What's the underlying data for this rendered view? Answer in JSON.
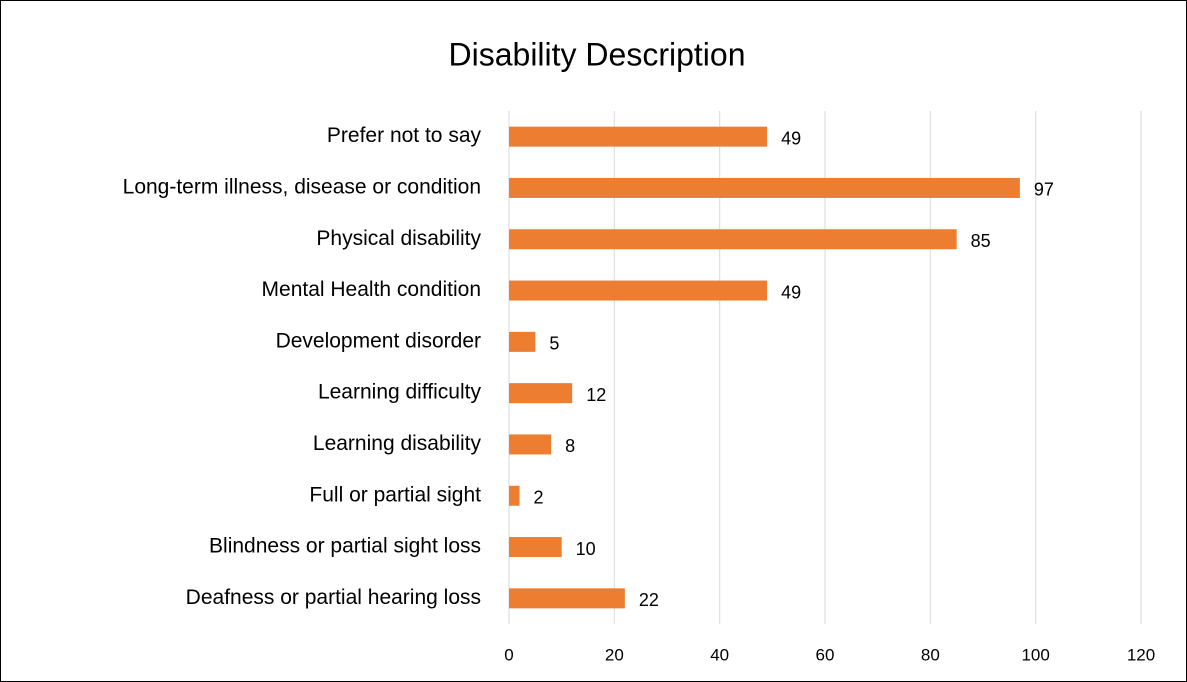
{
  "chart_data": {
    "type": "bar",
    "orientation": "horizontal",
    "title": "Disability Description",
    "categories": [
      "Prefer not to say",
      "Long-term illness, disease or condition",
      "Physical disability",
      "Mental Health condition",
      "Development disorder",
      "Learning difficulty",
      "Learning disability",
      "Full or partial sight",
      "Blindness or partial sight loss",
      "Deafness or partial hearing loss"
    ],
    "values": [
      49,
      97,
      85,
      49,
      5,
      12,
      8,
      2,
      10,
      22
    ],
    "color": "#ed7d31",
    "xlim": [
      0,
      120
    ],
    "xticks": [
      0,
      20,
      40,
      60,
      80,
      100,
      120
    ],
    "grid": true
  }
}
